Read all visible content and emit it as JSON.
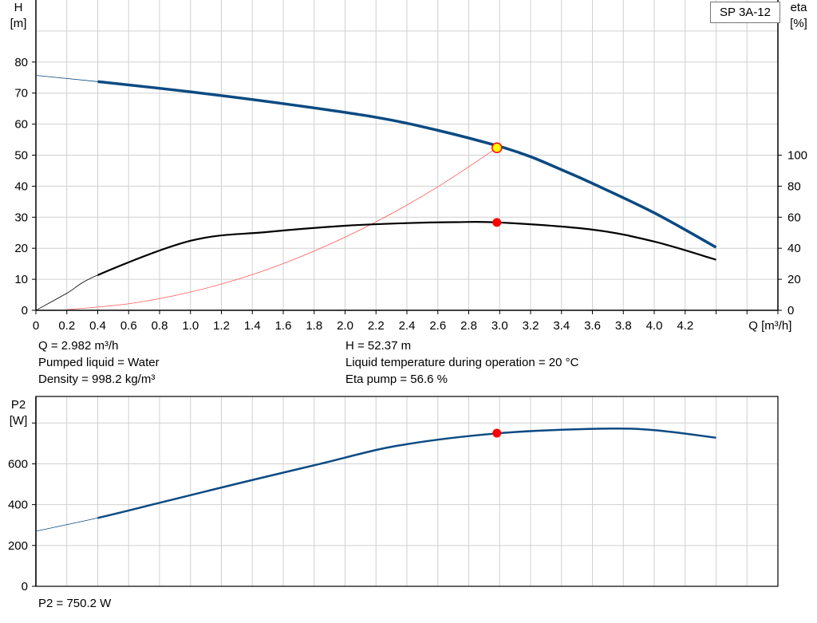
{
  "legend": {
    "pump_model": "SP 3A-12"
  },
  "info": {
    "q": "Q = 2.982 m³/h",
    "h": "H = 52.37 m",
    "liquid": "Pumped liquid = Water",
    "temperature": "Liquid temperature during operation = 20 °C",
    "density": "Density = 998.2 kg/m³",
    "eta": "Eta pump = 56.6 %",
    "p2": "P2 = 750.2 W"
  },
  "colors": {
    "head": "#0b4a82",
    "eta": "#000000",
    "system": "#ff5a5a",
    "p2": "#0b4a82",
    "marker": "#ff0000",
    "duty_point": "#ffff00",
    "grid": "#d0d0d0"
  },
  "chart_data": [
    {
      "type": "line",
      "title": "",
      "xlabel": "Q [m³/h]",
      "ylabel": "H\n[m]",
      "y2label": "eta\n[%]",
      "xlim": [
        0,
        4.8
      ],
      "ylim": [
        0,
        100
      ],
      "y2lim": [
        0,
        200
      ],
      "xticks": [
        0,
        0.2,
        0.4,
        0.6,
        0.8,
        1.0,
        1.2,
        1.4,
        1.6,
        1.8,
        2.0,
        2.2,
        2.4,
        2.6,
        2.8,
        3.0,
        3.2,
        3.4,
        3.6,
        3.8,
        4.0,
        4.2
      ],
      "yticks": [
        0,
        10,
        20,
        30,
        40,
        50,
        60,
        70,
        80
      ],
      "y2ticks": [
        0,
        20,
        40,
        60,
        80,
        100
      ],
      "grid": true,
      "series": [
        {
          "id": "head",
          "axis": "left",
          "thin_range": [
            0,
            0.4
          ],
          "x": [
            0,
            0.4,
            1.0,
            1.6,
            2.2,
            2.6,
            3.0,
            3.2,
            3.4,
            3.6,
            4.0,
            4.4
          ],
          "y": [
            75.7,
            73.7,
            70.4,
            66.6,
            62.2,
            58.0,
            52.8,
            49.5,
            45.3,
            40.9,
            31.4,
            20.3
          ]
        },
        {
          "id": "eta",
          "axis": "right",
          "thin_range": [
            0,
            0.4
          ],
          "x": [
            0,
            0.2,
            0.4,
            1.0,
            1.5,
            2.0,
            2.4,
            2.7,
            3.0,
            3.6,
            4.0,
            4.4
          ],
          "y": [
            0,
            11,
            22.7,
            44.8,
            50.5,
            54.5,
            56.2,
            56.8,
            56.6,
            52,
            44.3,
            32.6
          ]
        },
        {
          "id": "system",
          "axis": "left",
          "x": [
            0.2,
            0.6,
            1.0,
            1.4,
            1.8,
            2.2,
            2.6,
            2.982
          ],
          "y": [
            0.24,
            2.12,
            5.89,
            11.5,
            19.1,
            28.5,
            39.8,
            52.37
          ]
        }
      ],
      "duty_point": {
        "q": 2.982,
        "h": 52.37,
        "eta": 56.6
      }
    },
    {
      "type": "line",
      "title": "",
      "ylabel": "P2\n[W]",
      "xlim": [
        0,
        4.8
      ],
      "ylim": [
        0,
        930
      ],
      "yticks": [
        0,
        200,
        400,
        600,
        800
      ],
      "ytick_labels": [
        "0",
        "200",
        "400",
        "600",
        ""
      ],
      "grid": true,
      "series": [
        {
          "id": "p2",
          "thin_range": [
            0,
            0.4
          ],
          "x": [
            0,
            0.4,
            0.8,
            1.32,
            1.84,
            2.35,
            3.0,
            3.66,
            4.0,
            4.4
          ],
          "y": [
            270,
            335,
            409,
            506,
            600,
            690,
            750,
            772,
            765,
            728
          ]
        }
      ],
      "duty_point": {
        "q": 2.982,
        "p2": 750.2
      }
    }
  ]
}
